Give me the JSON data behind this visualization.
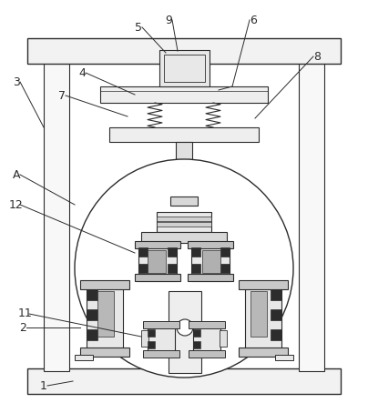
{
  "fig_width": 4.04,
  "fig_height": 4.43,
  "dpi": 100,
  "bg_color": "#ffffff",
  "line_color": "#2c2c2c",
  "lw": 0.8
}
